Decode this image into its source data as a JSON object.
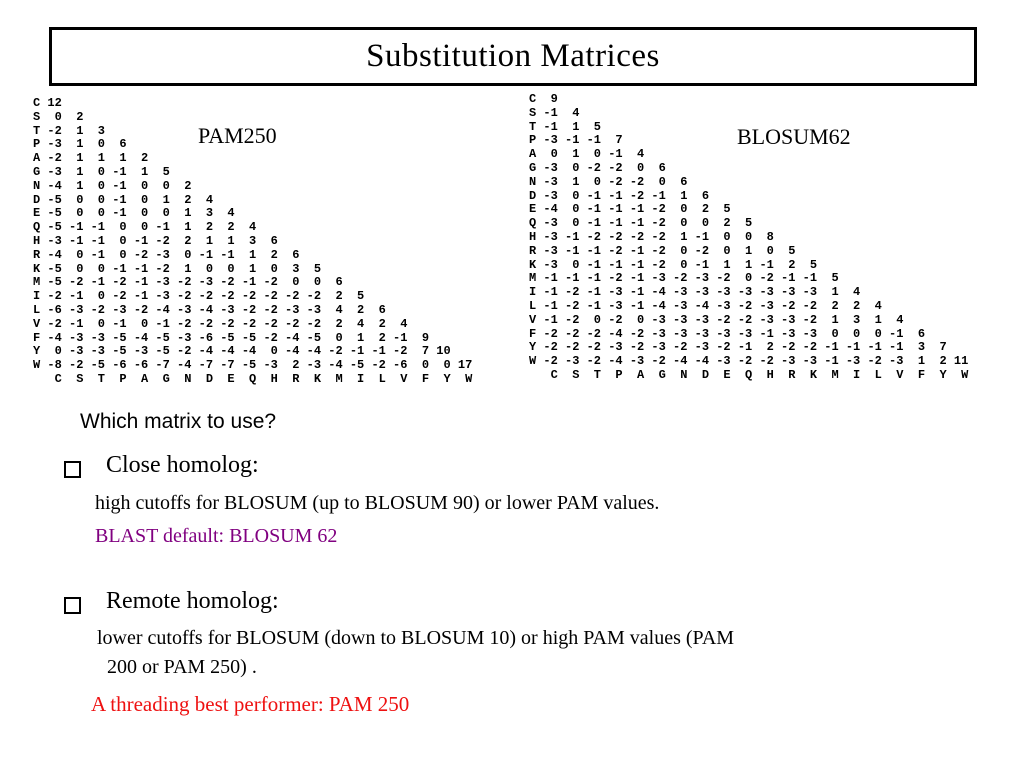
{
  "slide": {
    "title": "Substitution Matrices"
  },
  "matrices": {
    "pam250": {
      "label": "PAM250",
      "residues": [
        "C",
        "S",
        "T",
        "P",
        "A",
        "G",
        "N",
        "D",
        "E",
        "Q",
        "H",
        "R",
        "K",
        "M",
        "I",
        "L",
        "V",
        "F",
        "Y",
        "W"
      ],
      "rows": [
        [
          12
        ],
        [
          0,
          2
        ],
        [
          -2,
          1,
          3
        ],
        [
          -3,
          1,
          0,
          6
        ],
        [
          -2,
          1,
          1,
          1,
          2
        ],
        [
          -3,
          1,
          0,
          -1,
          1,
          5
        ],
        [
          -4,
          1,
          0,
          -1,
          0,
          0,
          2
        ],
        [
          -5,
          0,
          0,
          -1,
          0,
          1,
          2,
          4
        ],
        [
          -5,
          0,
          0,
          -1,
          0,
          0,
          1,
          3,
          4
        ],
        [
          -5,
          -1,
          -1,
          0,
          0,
          -1,
          1,
          2,
          2,
          4
        ],
        [
          -3,
          -1,
          -1,
          0,
          -1,
          -2,
          2,
          1,
          1,
          3,
          6
        ],
        [
          -4,
          0,
          -1,
          0,
          -2,
          -3,
          0,
          -1,
          -1,
          1,
          2,
          6
        ],
        [
          -5,
          0,
          0,
          -1,
          -1,
          -2,
          1,
          0,
          0,
          1,
          0,
          3,
          5
        ],
        [
          -5,
          -2,
          -1,
          -2,
          -1,
          -3,
          -2,
          -3,
          -2,
          -1,
          -2,
          0,
          0,
          6
        ],
        [
          -2,
          -1,
          0,
          -2,
          -1,
          -3,
          -2,
          -2,
          -2,
          -2,
          -2,
          -2,
          -2,
          2,
          5
        ],
        [
          -6,
          -3,
          -2,
          -3,
          -2,
          -4,
          -3,
          -4,
          -3,
          -2,
          -2,
          -3,
          -3,
          4,
          2,
          6
        ],
        [
          -2,
          -1,
          0,
          -1,
          0,
          -1,
          -2,
          -2,
          -2,
          -2,
          -2,
          -2,
          -2,
          2,
          4,
          2,
          4
        ],
        [
          -4,
          -3,
          -3,
          -5,
          -4,
          -5,
          -3,
          -6,
          -5,
          -5,
          -2,
          -4,
          -5,
          0,
          1,
          2,
          -1,
          9
        ],
        [
          0,
          -3,
          -3,
          -5,
          -3,
          -5,
          -2,
          -4,
          -4,
          -4,
          0,
          -4,
          -4,
          -2,
          -1,
          -1,
          -2,
          7,
          10
        ],
        [
          -8,
          -2,
          -5,
          -6,
          -6,
          -7,
          -4,
          -7,
          -7,
          -5,
          -3,
          2,
          -3,
          -4,
          -5,
          -2,
          -6,
          0,
          0,
          17
        ]
      ]
    },
    "blosum62": {
      "label": "BLOSUM62",
      "residues": [
        "C",
        "S",
        "T",
        "P",
        "A",
        "G",
        "N",
        "D",
        "E",
        "Q",
        "H",
        "R",
        "K",
        "M",
        "I",
        "L",
        "V",
        "F",
        "Y",
        "W"
      ],
      "rows": [
        [
          9
        ],
        [
          -1,
          4
        ],
        [
          -1,
          1,
          5
        ],
        [
          -3,
          -1,
          -1,
          7
        ],
        [
          0,
          1,
          0,
          -1,
          4
        ],
        [
          -3,
          0,
          -2,
          -2,
          0,
          6
        ],
        [
          -3,
          1,
          0,
          -2,
          -2,
          0,
          6
        ],
        [
          -3,
          0,
          -1,
          -1,
          -2,
          -1,
          1,
          6
        ],
        [
          -4,
          0,
          -1,
          -1,
          -1,
          -2,
          0,
          2,
          5
        ],
        [
          -3,
          0,
          -1,
          -1,
          -1,
          -2,
          0,
          0,
          2,
          5
        ],
        [
          -3,
          -1,
          -2,
          -2,
          -2,
          -2,
          1,
          -1,
          0,
          0,
          8
        ],
        [
          -3,
          -1,
          -1,
          -2,
          -1,
          -2,
          0,
          -2,
          0,
          1,
          0,
          5
        ],
        [
          -3,
          0,
          -1,
          -1,
          -1,
          -2,
          0,
          -1,
          1,
          1,
          -1,
          2,
          5
        ],
        [
          -1,
          -1,
          -1,
          -2,
          -1,
          -3,
          -2,
          -3,
          -2,
          0,
          -2,
          -1,
          -1,
          5
        ],
        [
          -1,
          -2,
          -1,
          -3,
          -1,
          -4,
          -3,
          -3,
          -3,
          -3,
          -3,
          -3,
          -3,
          1,
          4
        ],
        [
          -1,
          -2,
          -1,
          -3,
          -1,
          -4,
          -3,
          -4,
          -3,
          -2,
          -3,
          -2,
          -2,
          2,
          2,
          4
        ],
        [
          -1,
          -2,
          0,
          -2,
          0,
          -3,
          -3,
          -3,
          -2,
          -2,
          -3,
          -3,
          -2,
          1,
          3,
          1,
          4
        ],
        [
          -2,
          -2,
          -2,
          -4,
          -2,
          -3,
          -3,
          -3,
          -3,
          -3,
          -1,
          -3,
          -3,
          0,
          0,
          0,
          -1,
          6
        ],
        [
          -2,
          -2,
          -2,
          -3,
          -2,
          -3,
          -2,
          -3,
          -2,
          -1,
          2,
          -2,
          -2,
          -1,
          -1,
          -1,
          -1,
          3,
          7
        ],
        [
          -2,
          -3,
          -2,
          -4,
          -3,
          -2,
          -4,
          -4,
          -3,
          -2,
          -2,
          -3,
          -3,
          -1,
          -3,
          -2,
          -3,
          1,
          2,
          11
        ]
      ]
    }
  },
  "body": {
    "question": "Which matrix to use?",
    "close": {
      "heading": "Close homolog:",
      "line1": "high cutoffs for BLOSUM (up to BLOSUM 90) or lower PAM values.",
      "line2": "BLAST default: BLOSUM 62"
    },
    "remote": {
      "heading": "Remote homolog:",
      "line1": "lower cutoffs for BLOSUM (down to BLOSUM 10) or high PAM values (PAM",
      "line2": "200 or PAM 250) .",
      "line3": "A threading best performer: PAM 250"
    }
  },
  "colors": {
    "blast_default_text": "#800080",
    "threading_text": "#ee1111",
    "border": "#000000"
  }
}
